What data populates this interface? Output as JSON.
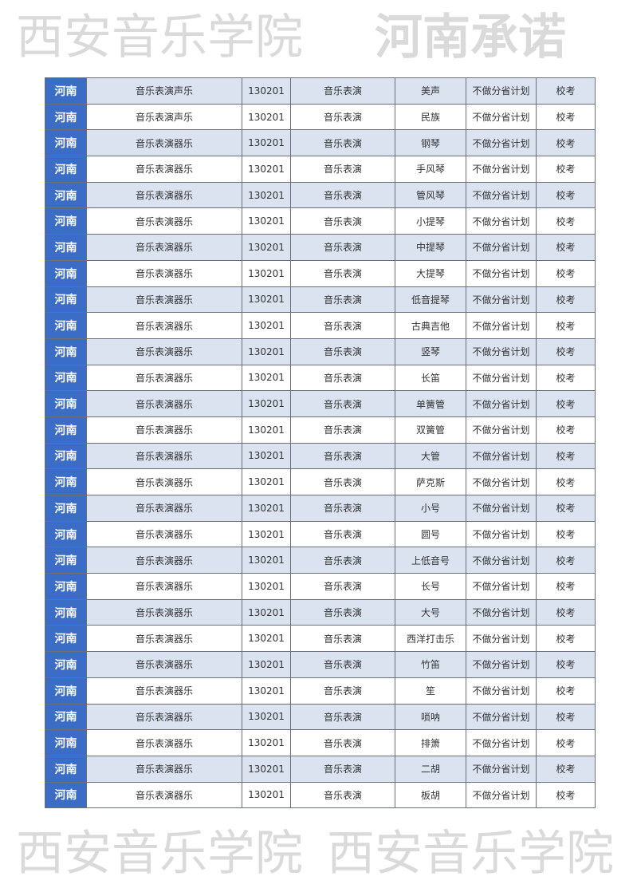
{
  "colors": {
    "province_bg": "#3b6cc6",
    "alt_row_bg": "#dbe3f1"
  },
  "watermark": {
    "text": "西安音乐学院",
    "stamp": "河南承诺"
  },
  "rows": [
    [
      "河南",
      "音乐表演声乐",
      "130201",
      "音乐表演",
      "美声",
      "不做分省计划",
      "校考"
    ],
    [
      "河南",
      "音乐表演声乐",
      "130201",
      "音乐表演",
      "民族",
      "不做分省计划",
      "校考"
    ],
    [
      "河南",
      "音乐表演器乐",
      "130201",
      "音乐表演",
      "钢琴",
      "不做分省计划",
      "校考"
    ],
    [
      "河南",
      "音乐表演器乐",
      "130201",
      "音乐表演",
      "手风琴",
      "不做分省计划",
      "校考"
    ],
    [
      "河南",
      "音乐表演器乐",
      "130201",
      "音乐表演",
      "管风琴",
      "不做分省计划",
      "校考"
    ],
    [
      "河南",
      "音乐表演器乐",
      "130201",
      "音乐表演",
      "小提琴",
      "不做分省计划",
      "校考"
    ],
    [
      "河南",
      "音乐表演器乐",
      "130201",
      "音乐表演",
      "中提琴",
      "不做分省计划",
      "校考"
    ],
    [
      "河南",
      "音乐表演器乐",
      "130201",
      "音乐表演",
      "大提琴",
      "不做分省计划",
      "校考"
    ],
    [
      "河南",
      "音乐表演器乐",
      "130201",
      "音乐表演",
      "低音提琴",
      "不做分省计划",
      "校考"
    ],
    [
      "河南",
      "音乐表演器乐",
      "130201",
      "音乐表演",
      "古典吉他",
      "不做分省计划",
      "校考"
    ],
    [
      "河南",
      "音乐表演器乐",
      "130201",
      "音乐表演",
      "竖琴",
      "不做分省计划",
      "校考"
    ],
    [
      "河南",
      "音乐表演器乐",
      "130201",
      "音乐表演",
      "长笛",
      "不做分省计划",
      "校考"
    ],
    [
      "河南",
      "音乐表演器乐",
      "130201",
      "音乐表演",
      "单簧管",
      "不做分省计划",
      "校考"
    ],
    [
      "河南",
      "音乐表演器乐",
      "130201",
      "音乐表演",
      "双簧管",
      "不做分省计划",
      "校考"
    ],
    [
      "河南",
      "音乐表演器乐",
      "130201",
      "音乐表演",
      "大管",
      "不做分省计划",
      "校考"
    ],
    [
      "河南",
      "音乐表演器乐",
      "130201",
      "音乐表演",
      "萨克斯",
      "不做分省计划",
      "校考"
    ],
    [
      "河南",
      "音乐表演器乐",
      "130201",
      "音乐表演",
      "小号",
      "不做分省计划",
      "校考"
    ],
    [
      "河南",
      "音乐表演器乐",
      "130201",
      "音乐表演",
      "圆号",
      "不做分省计划",
      "校考"
    ],
    [
      "河南",
      "音乐表演器乐",
      "130201",
      "音乐表演",
      "上低音号",
      "不做分省计划",
      "校考"
    ],
    [
      "河南",
      "音乐表演器乐",
      "130201",
      "音乐表演",
      "长号",
      "不做分省计划",
      "校考"
    ],
    [
      "河南",
      "音乐表演器乐",
      "130201",
      "音乐表演",
      "大号",
      "不做分省计划",
      "校考"
    ],
    [
      "河南",
      "音乐表演器乐",
      "130201",
      "音乐表演",
      "西洋打击乐",
      "不做分省计划",
      "校考"
    ],
    [
      "河南",
      "音乐表演器乐",
      "130201",
      "音乐表演",
      "竹笛",
      "不做分省计划",
      "校考"
    ],
    [
      "河南",
      "音乐表演器乐",
      "130201",
      "音乐表演",
      "笙",
      "不做分省计划",
      "校考"
    ],
    [
      "河南",
      "音乐表演器乐",
      "130201",
      "音乐表演",
      "唢呐",
      "不做分省计划",
      "校考"
    ],
    [
      "河南",
      "音乐表演器乐",
      "130201",
      "音乐表演",
      "排箫",
      "不做分省计划",
      "校考"
    ],
    [
      "河南",
      "音乐表演器乐",
      "130201",
      "音乐表演",
      "二胡",
      "不做分省计划",
      "校考"
    ],
    [
      "河南",
      "音乐表演器乐",
      "130201",
      "音乐表演",
      "板胡",
      "不做分省计划",
      "校考"
    ]
  ]
}
